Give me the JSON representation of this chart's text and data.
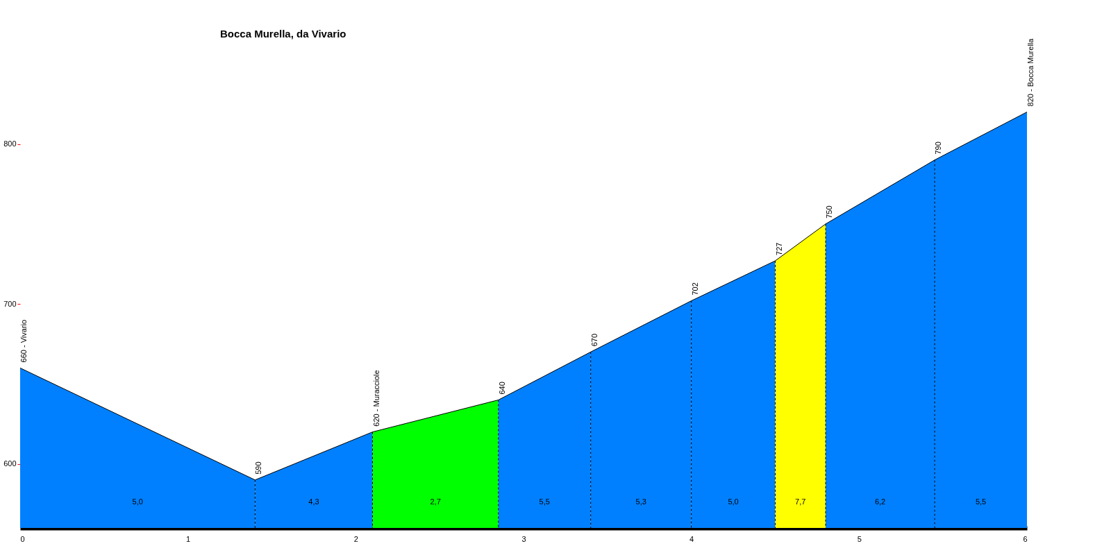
{
  "chart_data": {
    "type": "area",
    "title": "Bocca Murella, da Vivario",
    "series": [
      {
        "x": [
          0,
          1.4
        ],
        "values": [
          660,
          590
        ],
        "color": "#0080ff"
      },
      {
        "x": [
          1.4,
          2.1
        ],
        "values": [
          590,
          620
        ],
        "color": "#0080ff"
      },
      {
        "x": [
          2.1,
          2.85
        ],
        "values": [
          620,
          640
        ],
        "color": "#00ff00"
      },
      {
        "x": [
          2.85,
          3.4
        ],
        "values": [
          640,
          670
        ],
        "color": "#0080ff"
      },
      {
        "x": [
          3.4,
          4.0
        ],
        "values": [
          670,
          702
        ],
        "color": "#0080ff"
      },
      {
        "x": [
          4.0,
          4.5
        ],
        "values": [
          702,
          727
        ],
        "color": "#0080ff"
      },
      {
        "x": [
          4.5,
          4.8
        ],
        "values": [
          727,
          750
        ],
        "color": "#ffff00"
      },
      {
        "x": [
          4.8,
          5.45
        ],
        "values": [
          750,
          790
        ],
        "color": "#0080ff"
      },
      {
        "x": [
          5.45,
          6.0
        ],
        "values": [
          790,
          820
        ],
        "color": "#0080ff"
      }
    ],
    "xlim": [
      0,
      6
    ],
    "xticks": [
      0,
      1,
      2,
      3,
      4,
      5,
      6
    ],
    "ylim": [
      560,
      890
    ],
    "yticks": [
      600,
      700,
      800
    ],
    "grid": false,
    "legend": false,
    "annotations": [
      {
        "text": "660 - Vivario",
        "x": 0,
        "y": 660
      },
      {
        "text": "590",
        "x": 1.4,
        "y": 590
      },
      {
        "text": "620 - Muracciole",
        "x": 2.1,
        "y": 620
      },
      {
        "text": "640",
        "x": 2.85,
        "y": 640
      },
      {
        "text": "670",
        "x": 3.4,
        "y": 670
      },
      {
        "text": "702",
        "x": 4.0,
        "y": 702
      },
      {
        "text": "727",
        "x": 4.5,
        "y": 727
      },
      {
        "text": "750",
        "x": 4.8,
        "y": 750
      },
      {
        "text": "790",
        "x": 5.45,
        "y": 790
      },
      {
        "text": "820 - Bocca Murella",
        "x": 6.0,
        "y": 820
      },
      "5,0",
      "4,3",
      "2,7",
      "5,5",
      "5,3",
      "5,0",
      "7,7",
      "6,2",
      "5,5"
    ]
  }
}
